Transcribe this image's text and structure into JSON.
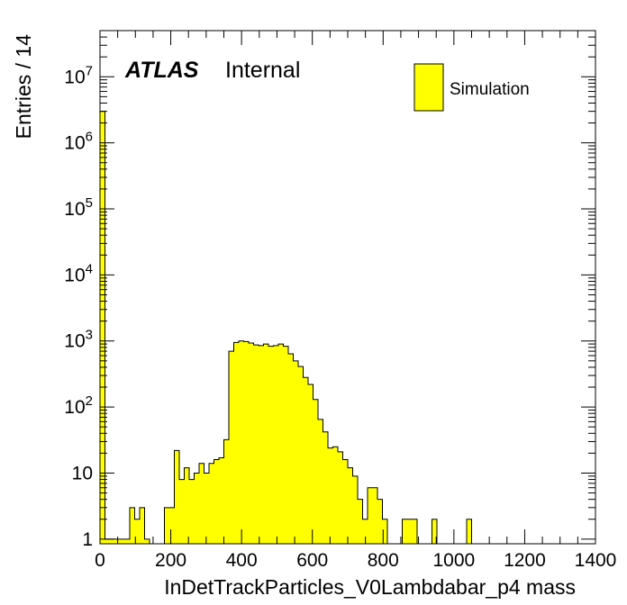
{
  "chart_data": {
    "type": "bar",
    "xlabel": "InDetTrackParticles_V0Lambdabar_p4 mass",
    "ylabel": "Entries / 14",
    "xlim": [
      0,
      1400
    ],
    "ylim": [
      0.85,
      50000000
    ],
    "yscale": "log",
    "bin_width": 14,
    "x_ticks": [
      "0",
      "200",
      "400",
      "600",
      "800",
      "1000",
      "1200",
      "1400"
    ],
    "y_ticks": [
      {
        "value": 1,
        "base": "1",
        "exp": ""
      },
      {
        "value": 10,
        "base": "10",
        "exp": ""
      },
      {
        "value": 100,
        "base": "10",
        "exp": "2"
      },
      {
        "value": 1000,
        "base": "10",
        "exp": "3"
      },
      {
        "value": 10000,
        "base": "10",
        "exp": "4"
      },
      {
        "value": 100000,
        "base": "10",
        "exp": "5"
      },
      {
        "value": 1000000,
        "base": "10",
        "exp": "6"
      },
      {
        "value": 10000000,
        "base": "10",
        "exp": "7"
      }
    ],
    "fill_color": "#ffff00",
    "line_color": "#000000",
    "series": [
      {
        "name": "Simulation",
        "values": [
          3000000,
          1,
          1,
          1,
          1,
          1,
          3,
          2,
          3,
          1,
          0,
          0,
          0,
          3,
          3,
          22,
          8,
          12,
          8,
          10,
          14,
          10,
          14,
          16,
          17,
          32,
          700,
          950,
          1000,
          980,
          930,
          870,
          850,
          900,
          830,
          850,
          900,
          830,
          640,
          500,
          410,
          280,
          220,
          130,
          65,
          42,
          24,
          25,
          21,
          16,
          12,
          9,
          4,
          2,
          6,
          6,
          4,
          2,
          0,
          0,
          0,
          2,
          2,
          2,
          0,
          0,
          0,
          2,
          0,
          0,
          0,
          0,
          0,
          0,
          2,
          0,
          0,
          0,
          0,
          0,
          0,
          0,
          0,
          0,
          0,
          0,
          0,
          0,
          0,
          0,
          0,
          0,
          0,
          0,
          0,
          0,
          0,
          0,
          0,
          0
        ]
      }
    ]
  },
  "labels": {
    "atlas": "ATLAS",
    "internal": "Internal"
  },
  "legend": {
    "label": "Simulation"
  }
}
